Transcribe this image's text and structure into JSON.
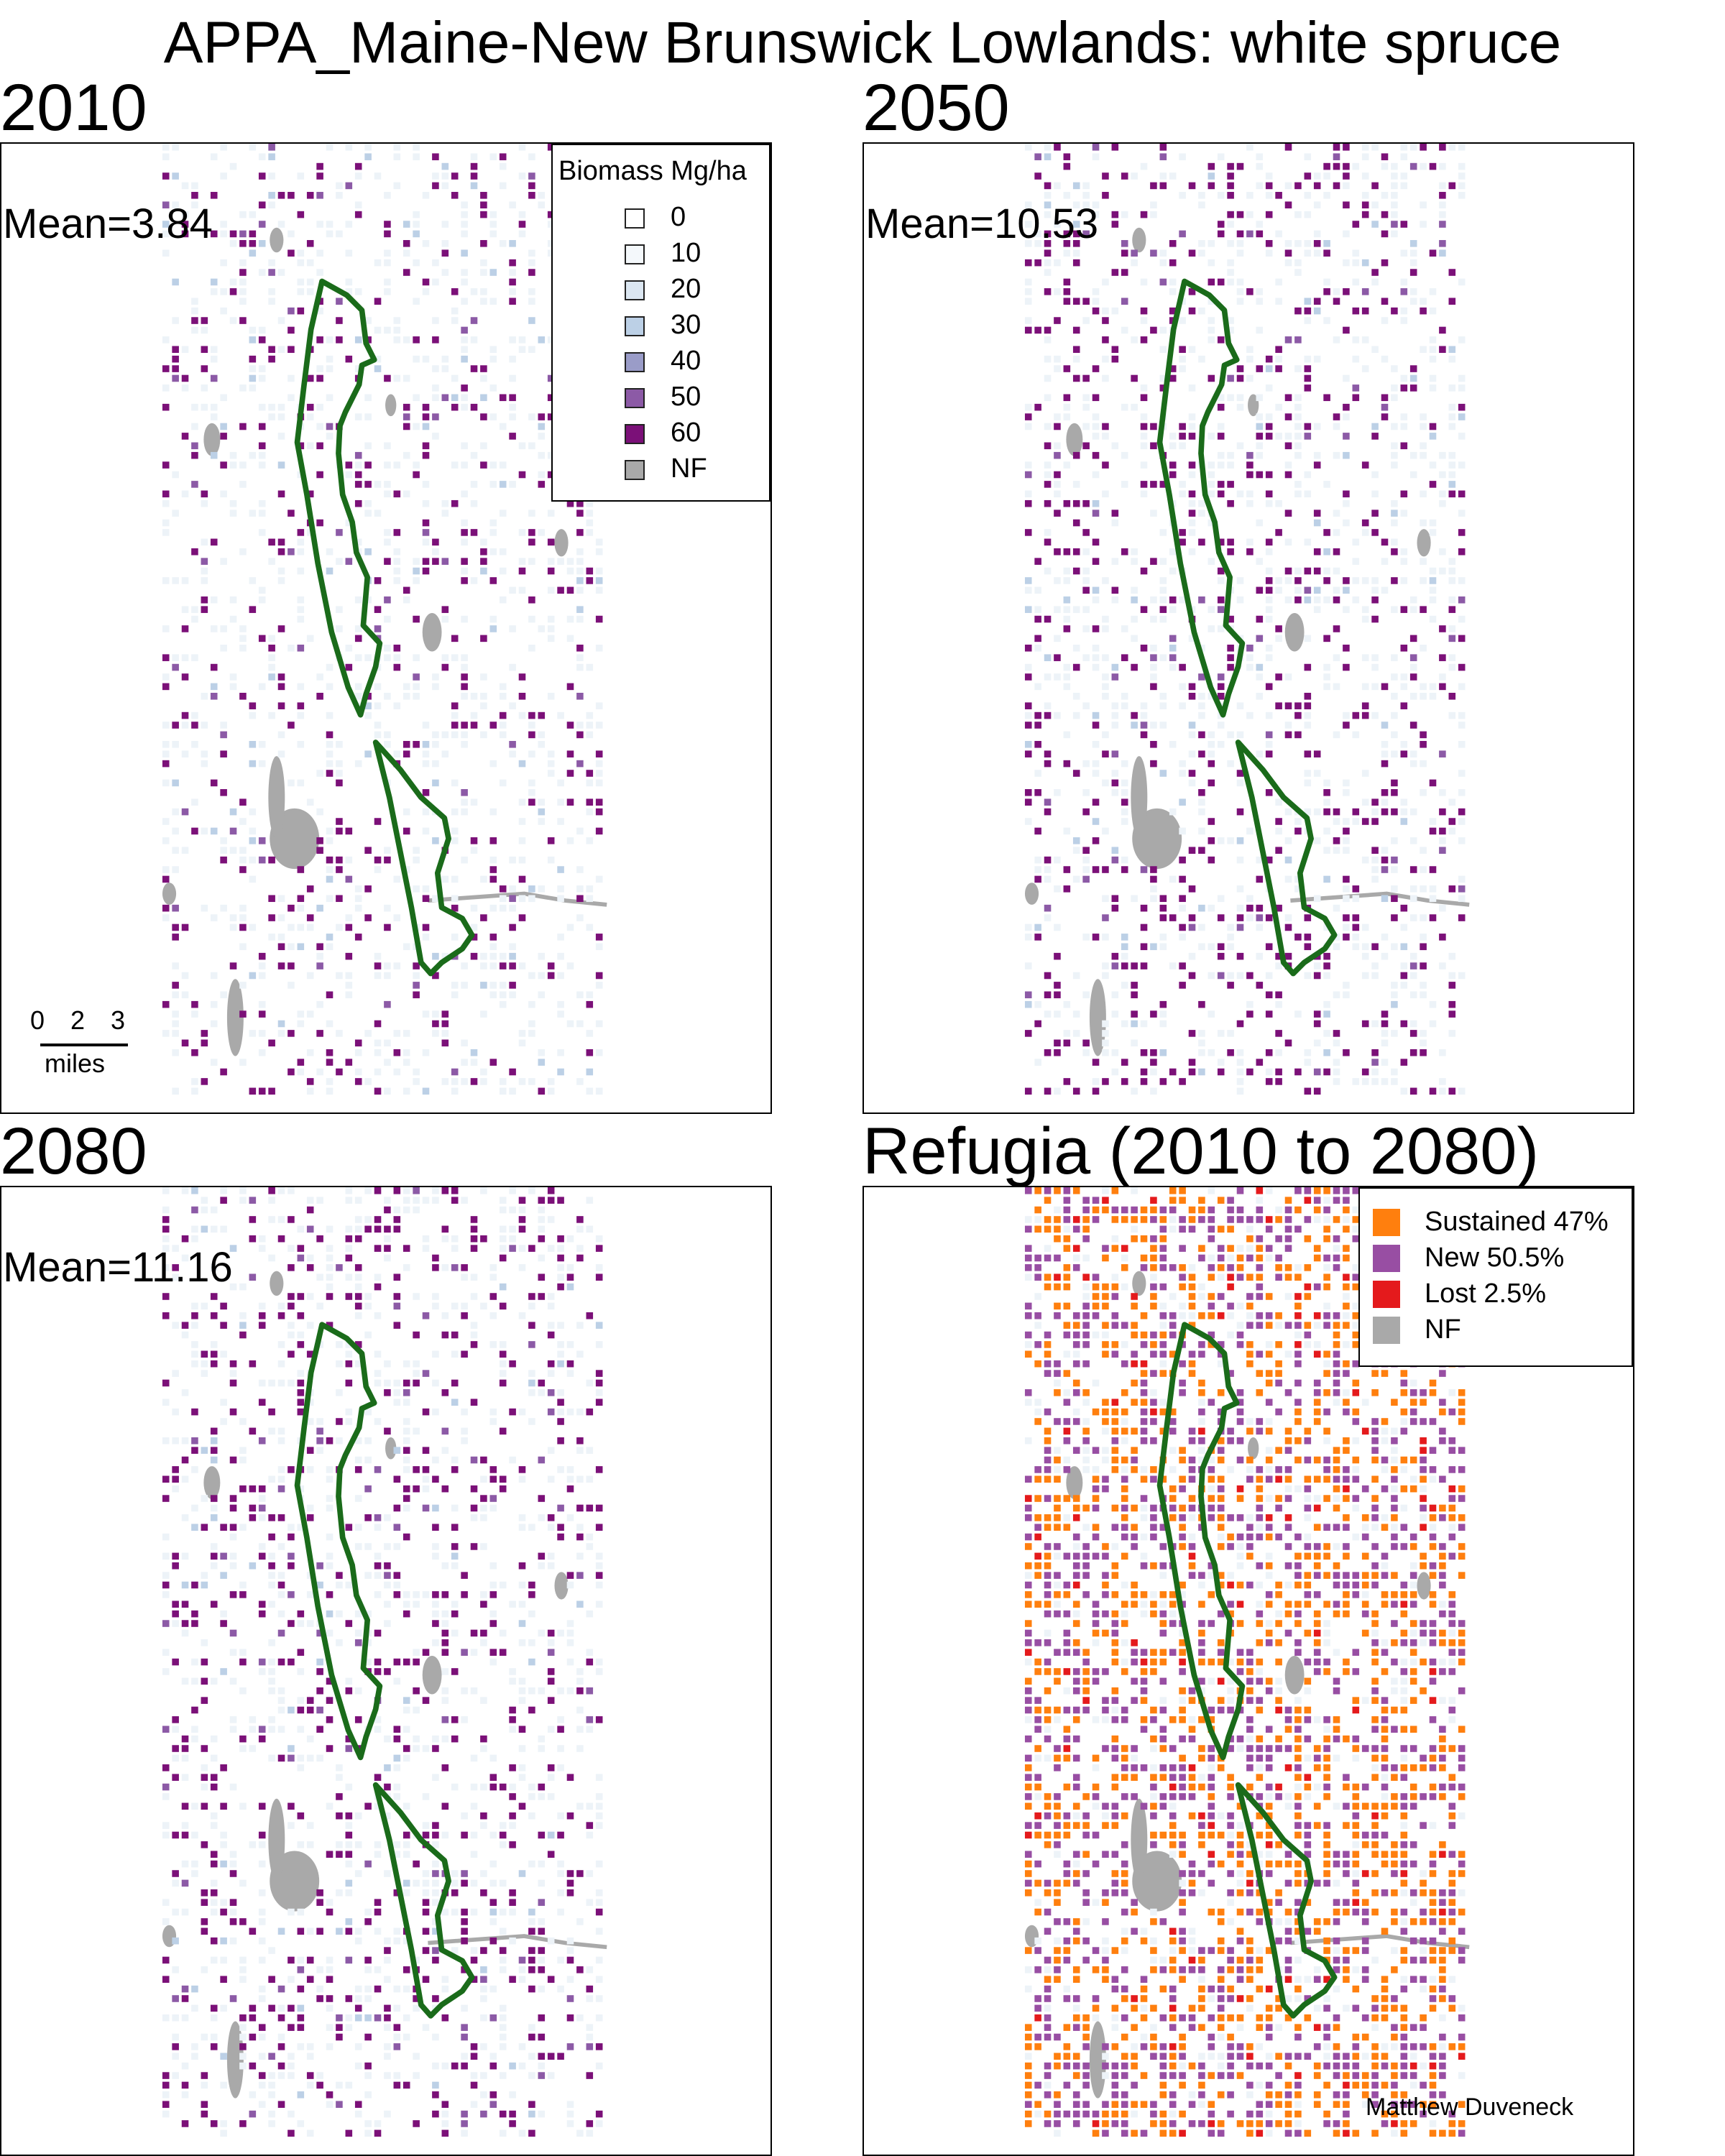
{
  "title": "APPA_Maine-New Brunswick Lowlands: white spruce",
  "panels": [
    {
      "heading": "2010",
      "mean": "Mean=3.84"
    },
    {
      "heading": "2050",
      "mean": "Mean=10.53"
    },
    {
      "heading": "2080",
      "mean": "Mean=11.16"
    },
    {
      "heading": "Refugia (2010 to 2080)"
    }
  ],
  "biomass_legend": {
    "title": "Biomass Mg/ha",
    "items": [
      {
        "label": "0",
        "color": "#ffffff"
      },
      {
        "label": "10",
        "color": "#f4f8fb"
      },
      {
        "label": "20",
        "color": "#dbe6f1"
      },
      {
        "label": "30",
        "color": "#bcd0e6"
      },
      {
        "label": "40",
        "color": "#9a9cc8"
      },
      {
        "label": "50",
        "color": "#8c5aa6"
      },
      {
        "label": "60",
        "color": "#7b1078"
      },
      {
        "label": "NF",
        "color": "#a9a9a9"
      }
    ]
  },
  "refugia_legend": {
    "items": [
      {
        "label": "Sustained 47%",
        "color": "#ff7f0e"
      },
      {
        "label": "New 50.5%",
        "color": "#984ea3"
      },
      {
        "label": "Lost 2.5%",
        "color": "#e41a1c"
      },
      {
        "label": "NF",
        "color": "#a9a9a9"
      }
    ]
  },
  "scale_bar": {
    "ticks": [
      "0",
      "2",
      "3"
    ],
    "units": "miles"
  },
  "credit": "Matthew Duveneck",
  "colors": {
    "outline": "#1a6b1a",
    "nonforest": "#a9a9a9",
    "pale": "#edf3f8",
    "biomass_high": "#7b1078",
    "sustained": "#ff7f0e",
    "new": "#984ea3"
  }
}
